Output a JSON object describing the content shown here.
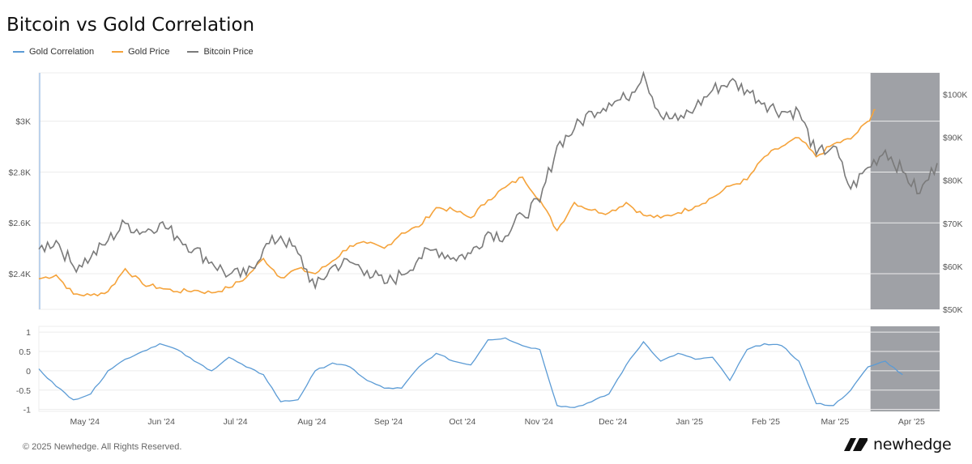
{
  "header": {
    "title": "Bitcoin vs Gold Correlation"
  },
  "legend": [
    {
      "label": "Gold Correlation",
      "color": "#5b9bd5"
    },
    {
      "label": "Gold Price",
      "color": "#f5a33b"
    },
    {
      "label": "Bitcoin Price",
      "color": "#7a7a7a"
    }
  ],
  "footer": {
    "copyright": "© 2025 Newhedge. All Rights Reserved."
  },
  "brand": {
    "name": "newhedge",
    "logo_icon": "newhedge-logo-icon"
  },
  "chart_data": [
    {
      "type": "line",
      "x_tick_labels": [
        "May '24",
        "Jun '24",
        "Jul '24",
        "Aug '24",
        "Sep '24",
        "Oct '24",
        "Nov '24",
        "Dec '24",
        "Jan '25",
        "Feb '25",
        "Mar '25",
        "Apr '25"
      ],
      "x_range": [
        "2024-04-15",
        "2025-04-15"
      ],
      "y_left": {
        "ticks": [
          "$2.4K",
          "$2.6K",
          "$2.8K",
          "$3K"
        ],
        "tick_values": [
          2400,
          2600,
          2800,
          3000
        ],
        "range": [
          2260,
          3190
        ]
      },
      "y_right": {
        "ticks": [
          "$50K",
          "$60K",
          "$70K",
          "$80K",
          "$90K",
          "$100K"
        ],
        "tick_values": [
          50000,
          60000,
          70000,
          80000,
          90000,
          100000
        ],
        "range": [
          50000,
          105000
        ]
      },
      "shaded_region": {
        "start": "2025-03-18",
        "end": "2025-04-15",
        "color": "#9fa1a6"
      },
      "grid": true,
      "series": [
        {
          "name": "Gold Price",
          "axis": "left",
          "color": "#f5a33b",
          "points": [
            [
              "2024-04-15",
              2380
            ],
            [
              "2024-04-22",
              2395
            ],
            [
              "2024-04-29",
              2320
            ],
            [
              "2024-05-06",
              2315
            ],
            [
              "2024-05-13",
              2330
            ],
            [
              "2024-05-20",
              2420
            ],
            [
              "2024-05-27",
              2360
            ],
            [
              "2024-06-03",
              2345
            ],
            [
              "2024-06-10",
              2330
            ],
            [
              "2024-06-17",
              2335
            ],
            [
              "2024-06-24",
              2325
            ],
            [
              "2024-07-01",
              2345
            ],
            [
              "2024-07-08",
              2385
            ],
            [
              "2024-07-15",
              2460
            ],
            [
              "2024-07-22",
              2385
            ],
            [
              "2024-07-29",
              2420
            ],
            [
              "2024-08-05",
              2400
            ],
            [
              "2024-08-12",
              2450
            ],
            [
              "2024-08-19",
              2510
            ],
            [
              "2024-08-26",
              2520
            ],
            [
              "2024-09-02",
              2500
            ],
            [
              "2024-09-09",
              2560
            ],
            [
              "2024-09-16",
              2585
            ],
            [
              "2024-09-23",
              2660
            ],
            [
              "2024-09-30",
              2650
            ],
            [
              "2024-10-07",
              2620
            ],
            [
              "2024-10-14",
              2690
            ],
            [
              "2024-10-21",
              2740
            ],
            [
              "2024-10-28",
              2780
            ],
            [
              "2024-11-04",
              2690
            ],
            [
              "2024-11-11",
              2570
            ],
            [
              "2024-11-18",
              2680
            ],
            [
              "2024-11-25",
              2650
            ],
            [
              "2024-12-02",
              2640
            ],
            [
              "2024-12-09",
              2680
            ],
            [
              "2024-12-16",
              2630
            ],
            [
              "2024-12-23",
              2620
            ],
            [
              "2024-12-30",
              2640
            ],
            [
              "2025-01-06",
              2665
            ],
            [
              "2025-01-13",
              2700
            ],
            [
              "2025-01-20",
              2745
            ],
            [
              "2025-01-27",
              2770
            ],
            [
              "2025-02-03",
              2860
            ],
            [
              "2025-02-10",
              2900
            ],
            [
              "2025-02-17",
              2935
            ],
            [
              "2025-02-24",
              2860
            ],
            [
              "2025-03-03",
              2910
            ],
            [
              "2025-03-10",
              2930
            ],
            [
              "2025-03-17",
              3000
            ],
            [
              "2025-03-20",
              3045
            ]
          ]
        },
        {
          "name": "Bitcoin Price",
          "axis": "right",
          "color": "#7a7a7a",
          "points": [
            [
              "2024-04-15",
              64000
            ],
            [
              "2024-04-22",
              66000
            ],
            [
              "2024-04-29",
              60000
            ],
            [
              "2024-05-06",
              62000
            ],
            [
              "2024-05-13",
              66000
            ],
            [
              "2024-05-20",
              70000
            ],
            [
              "2024-05-27",
              68000
            ],
            [
              "2024-06-03",
              70000
            ],
            [
              "2024-06-10",
              67000
            ],
            [
              "2024-06-17",
              64000
            ],
            [
              "2024-06-24",
              61000
            ],
            [
              "2024-07-01",
              58000
            ],
            [
              "2024-07-08",
              58000
            ],
            [
              "2024-07-15",
              64000
            ],
            [
              "2024-07-22",
              67000
            ],
            [
              "2024-07-29",
              63000
            ],
            [
              "2024-08-05",
              55000
            ],
            [
              "2024-08-12",
              60000
            ],
            [
              "2024-08-19",
              61000
            ],
            [
              "2024-08-26",
              59000
            ],
            [
              "2024-09-02",
              56000
            ],
            [
              "2024-09-09",
              58000
            ],
            [
              "2024-09-16",
              62000
            ],
            [
              "2024-09-23",
              64000
            ],
            [
              "2024-09-30",
              62000
            ],
            [
              "2024-10-07",
              63000
            ],
            [
              "2024-10-14",
              68000
            ],
            [
              "2024-10-21",
              67000
            ],
            [
              "2024-10-28",
              72000
            ],
            [
              "2024-11-04",
              75000
            ],
            [
              "2024-11-11",
              88000
            ],
            [
              "2024-11-18",
              92000
            ],
            [
              "2024-11-25",
              96000
            ],
            [
              "2024-12-02",
              98000
            ],
            [
              "2024-12-09",
              99000
            ],
            [
              "2024-12-16",
              105000
            ],
            [
              "2024-12-23",
              95000
            ],
            [
              "2024-12-30",
              94000
            ],
            [
              "2025-01-06",
              97000
            ],
            [
              "2025-01-13",
              101000
            ],
            [
              "2025-01-20",
              103000
            ],
            [
              "2025-01-27",
              101000
            ],
            [
              "2025-02-03",
              98000
            ],
            [
              "2025-02-10",
              96000
            ],
            [
              "2025-02-17",
              96000
            ],
            [
              "2025-02-24",
              86000
            ],
            [
              "2025-03-03",
              88000
            ],
            [
              "2025-03-10",
              78000
            ],
            [
              "2025-03-17",
              83000
            ],
            [
              "2025-03-24",
              87000
            ],
            [
              "2025-03-31",
              82000
            ],
            [
              "2025-04-07",
              77000
            ],
            [
              "2025-04-14",
              84000
            ]
          ]
        }
      ]
    },
    {
      "type": "line",
      "y_ticks": [
        "1",
        "0.5",
        "0",
        "-0.5",
        "-1"
      ],
      "y_tick_values": [
        1,
        0.5,
        0,
        -0.5,
        -1
      ],
      "y_range": [
        -1.05,
        1.15
      ],
      "grid": true,
      "series": [
        {
          "name": "Gold Correlation",
          "color": "#5b9bd5",
          "points": [
            [
              "2024-04-15",
              0.05
            ],
            [
              "2024-04-22",
              -0.4
            ],
            [
              "2024-04-29",
              -0.75
            ],
            [
              "2024-05-06",
              -0.6
            ],
            [
              "2024-05-13",
              0.0
            ],
            [
              "2024-05-20",
              0.3
            ],
            [
              "2024-05-27",
              0.5
            ],
            [
              "2024-06-03",
              0.7
            ],
            [
              "2024-06-10",
              0.55
            ],
            [
              "2024-06-17",
              0.25
            ],
            [
              "2024-06-24",
              0.0
            ],
            [
              "2024-07-01",
              0.35
            ],
            [
              "2024-07-08",
              0.1
            ],
            [
              "2024-07-15",
              -0.1
            ],
            [
              "2024-07-22",
              -0.8
            ],
            [
              "2024-07-29",
              -0.75
            ],
            [
              "2024-08-05",
              0.0
            ],
            [
              "2024-08-12",
              0.2
            ],
            [
              "2024-08-19",
              0.1
            ],
            [
              "2024-08-26",
              -0.25
            ],
            [
              "2024-09-02",
              -0.45
            ],
            [
              "2024-09-09",
              -0.45
            ],
            [
              "2024-09-16",
              0.1
            ],
            [
              "2024-09-23",
              0.45
            ],
            [
              "2024-09-30",
              0.25
            ],
            [
              "2024-10-07",
              0.15
            ],
            [
              "2024-10-14",
              0.8
            ],
            [
              "2024-10-21",
              0.85
            ],
            [
              "2024-10-28",
              0.65
            ],
            [
              "2024-11-04",
              0.55
            ],
            [
              "2024-11-11",
              -0.9
            ],
            [
              "2024-11-18",
              -0.95
            ],
            [
              "2024-11-25",
              -0.8
            ],
            [
              "2024-12-02",
              -0.6
            ],
            [
              "2024-12-09",
              0.15
            ],
            [
              "2024-12-16",
              0.75
            ],
            [
              "2024-12-23",
              0.25
            ],
            [
              "2024-12-30",
              0.45
            ],
            [
              "2025-01-06",
              0.3
            ],
            [
              "2025-01-13",
              0.35
            ],
            [
              "2025-01-20",
              -0.25
            ],
            [
              "2025-01-27",
              0.55
            ],
            [
              "2025-02-03",
              0.7
            ],
            [
              "2025-02-10",
              0.65
            ],
            [
              "2025-02-17",
              0.25
            ],
            [
              "2025-02-24",
              -0.85
            ],
            [
              "2025-03-03",
              -0.9
            ],
            [
              "2025-03-10",
              -0.5
            ],
            [
              "2025-03-17",
              0.1
            ],
            [
              "2025-03-24",
              0.25
            ],
            [
              "2025-03-31",
              -0.1
            ]
          ]
        }
      ]
    }
  ]
}
